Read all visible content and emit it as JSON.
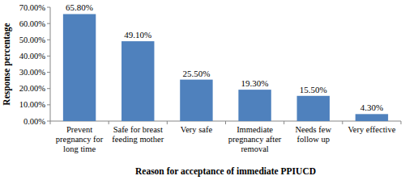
{
  "chart_data": {
    "type": "bar",
    "x_label": "Reason for acceptance of immediate PPIUCD",
    "y_label": "Response percentage",
    "categories": [
      "Prevent pregnancy for long time",
      "Safe for breast feeding mother",
      "Very safe",
      "Immediate pregnancy after removal",
      "Needs few follow up",
      "Very effective"
    ],
    "values": [
      65.8,
      49.1,
      25.5,
      19.3,
      15.5,
      4.3
    ],
    "value_labels": [
      "65.80%",
      "49.10%",
      "25.50%",
      "19.30%",
      "15.50%",
      "4.30%"
    ],
    "color": "#4f81bd",
    "ylim": [
      0,
      70
    ],
    "yticks": [
      {
        "value": 0,
        "label": "0.00%"
      },
      {
        "value": 10,
        "label": "10.00%"
      },
      {
        "value": 20,
        "label": "20.00%"
      },
      {
        "value": 30,
        "label": "30.00%"
      },
      {
        "value": 40,
        "label": "40.00%"
      },
      {
        "value": 50,
        "label": "50.00%"
      },
      {
        "value": 60,
        "label": "60.00%"
      },
      {
        "value": 70,
        "label": "70.00%"
      }
    ],
    "grid": false,
    "data_labels": true
  }
}
